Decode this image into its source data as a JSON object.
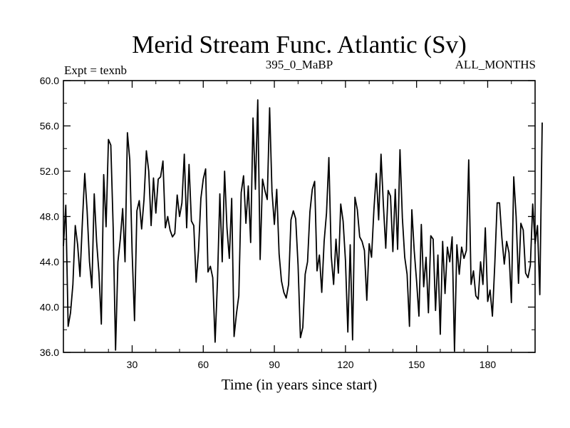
{
  "chart_data": {
    "type": "line",
    "title": "Merid Stream Func. Atlantic (Sv)",
    "subtitle_left": "Expt = texnb",
    "subtitle_center": "395_0_MaBP",
    "subtitle_right": "ALL_MONTHS",
    "xlabel": "Time (in years since start)",
    "ylabel": "",
    "xlim": [
      1,
      200
    ],
    "ylim": [
      36,
      60
    ],
    "xticks": [
      30,
      60,
      90,
      120,
      150,
      180
    ],
    "xtick_labels": [
      "30",
      "60",
      "90",
      "120",
      "150",
      "180"
    ],
    "yticks": [
      36,
      40,
      44,
      48,
      52,
      56,
      60
    ],
    "ytick_labels": [
      "36.0",
      "40.0",
      "44.0",
      "48.0",
      "52.0",
      "56.0",
      "60.0"
    ],
    "grid": false,
    "series": [
      {
        "name": "Merid Stream Func. Atlantic",
        "color": "#000000",
        "x_start": 1,
        "x_step": 1,
        "values": [
          45.4,
          49.0,
          38.3,
          39.5,
          42.0,
          47.2,
          45.5,
          42.7,
          47.5,
          51.8,
          48.5,
          44.0,
          41.7,
          50.0,
          45.8,
          43.0,
          38.5,
          51.7,
          47.1,
          54.8,
          54.3,
          47.0,
          36.2,
          44.0,
          46.0,
          48.7,
          44.0,
          55.4,
          53.0,
          44.8,
          38.8,
          48.5,
          49.4,
          46.9,
          49.5,
          53.8,
          52.0,
          47.2,
          51.4,
          48.3,
          51.3,
          51.5,
          52.9,
          47.0,
          48.0,
          46.8,
          46.2,
          46.5,
          49.9,
          48.0,
          49.2,
          53.5,
          47.0,
          52.6,
          47.6,
          47.2,
          42.2,
          45.0,
          49.6,
          51.3,
          52.2,
          43.1,
          43.6,
          42.6,
          36.9,
          42.3,
          50.0,
          44.0,
          52.0,
          47.0,
          44.3,
          49.6,
          37.4,
          39.4,
          41.0,
          50.1,
          51.6,
          47.4,
          50.7,
          45.7,
          56.7,
          50.4,
          58.3,
          44.2,
          51.3,
          50.3,
          49.5,
          57.6,
          50.2,
          47.3,
          50.4,
          44.7,
          42.3,
          41.3,
          40.8,
          42.0,
          47.7,
          48.5,
          47.8,
          43.7,
          37.3,
          38.2,
          42.9,
          44.0,
          48.4,
          50.4,
          51.1,
          43.2,
          44.6,
          41.3,
          45.8,
          48.3,
          53.2,
          44.5,
          42.0,
          46.0,
          43.0,
          49.1,
          47.6,
          44.1,
          37.8,
          45.5,
          37.1,
          49.7,
          48.6,
          46.2,
          45.8,
          45.0,
          40.6,
          45.6,
          44.4,
          48.6,
          51.8,
          47.7,
          53.5,
          49.0,
          45.2,
          50.3,
          49.8,
          44.9,
          50.4,
          45.1,
          53.9,
          47.9,
          44.4,
          42.9,
          38.3,
          48.6,
          45.0,
          42.3,
          39.2,
          47.3,
          41.8,
          44.4,
          39.5,
          46.3,
          46.0,
          39.7,
          44.6,
          37.6,
          45.8,
          41.2,
          45.3,
          44.0,
          46.2,
          36.1,
          45.5,
          42.9,
          45.3,
          44.3,
          45.0,
          53.0,
          42.0,
          43.2,
          41.0,
          40.7,
          44.0,
          42.0,
          47.0,
          40.5,
          41.5,
          39.2,
          43.8,
          49.2,
          49.2,
          46.1,
          43.8,
          45.8,
          44.8,
          40.4,
          51.5,
          48.0,
          42.1,
          47.4,
          46.8,
          43.0,
          42.6,
          43.7,
          49.1,
          45.6,
          47.2,
          41.1,
          56.3
        ]
      }
    ]
  }
}
